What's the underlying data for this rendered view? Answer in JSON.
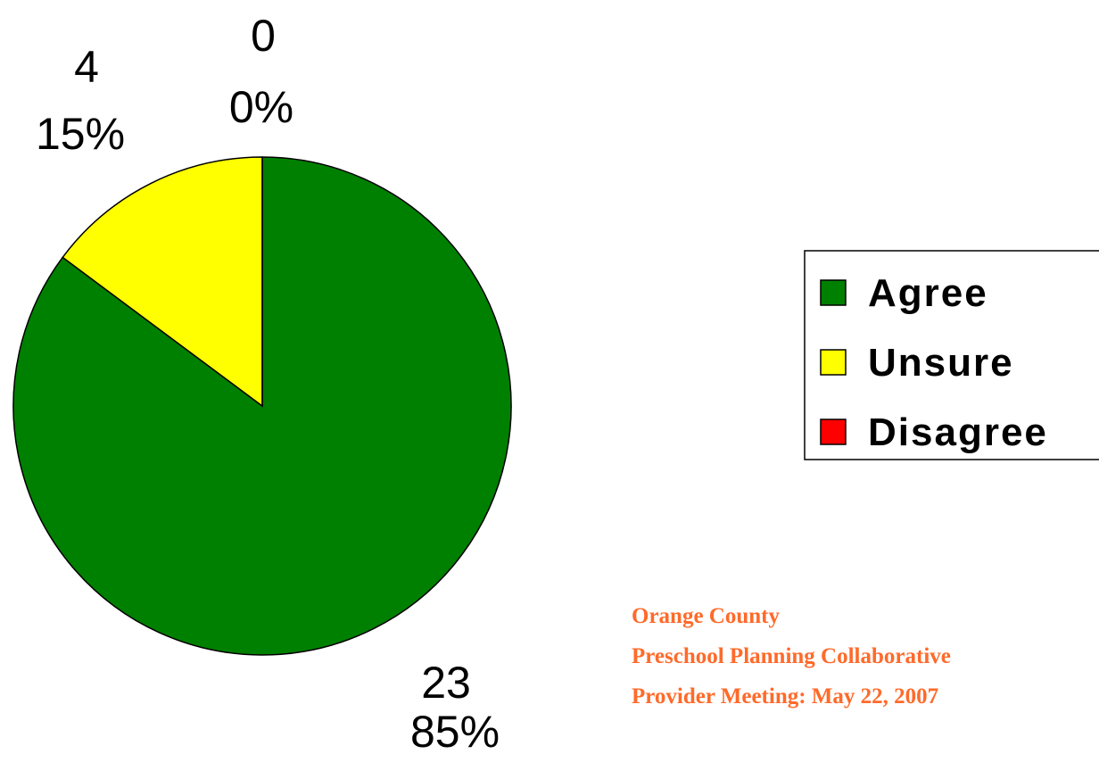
{
  "chart_data": {
    "type": "pie",
    "categories": [
      "Agree",
      "Unsure",
      "Disagree"
    ],
    "values": [
      23,
      4,
      0
    ],
    "percent_labels": [
      "85%",
      "15%",
      "0%"
    ],
    "colors": [
      "#008000",
      "#ffff00",
      "#ff0000"
    ],
    "legend": "right",
    "footer": [
      "Orange County",
      "Preschool Planning Collaborative",
      "Provider Meeting:  May 22, 2007"
    ]
  }
}
